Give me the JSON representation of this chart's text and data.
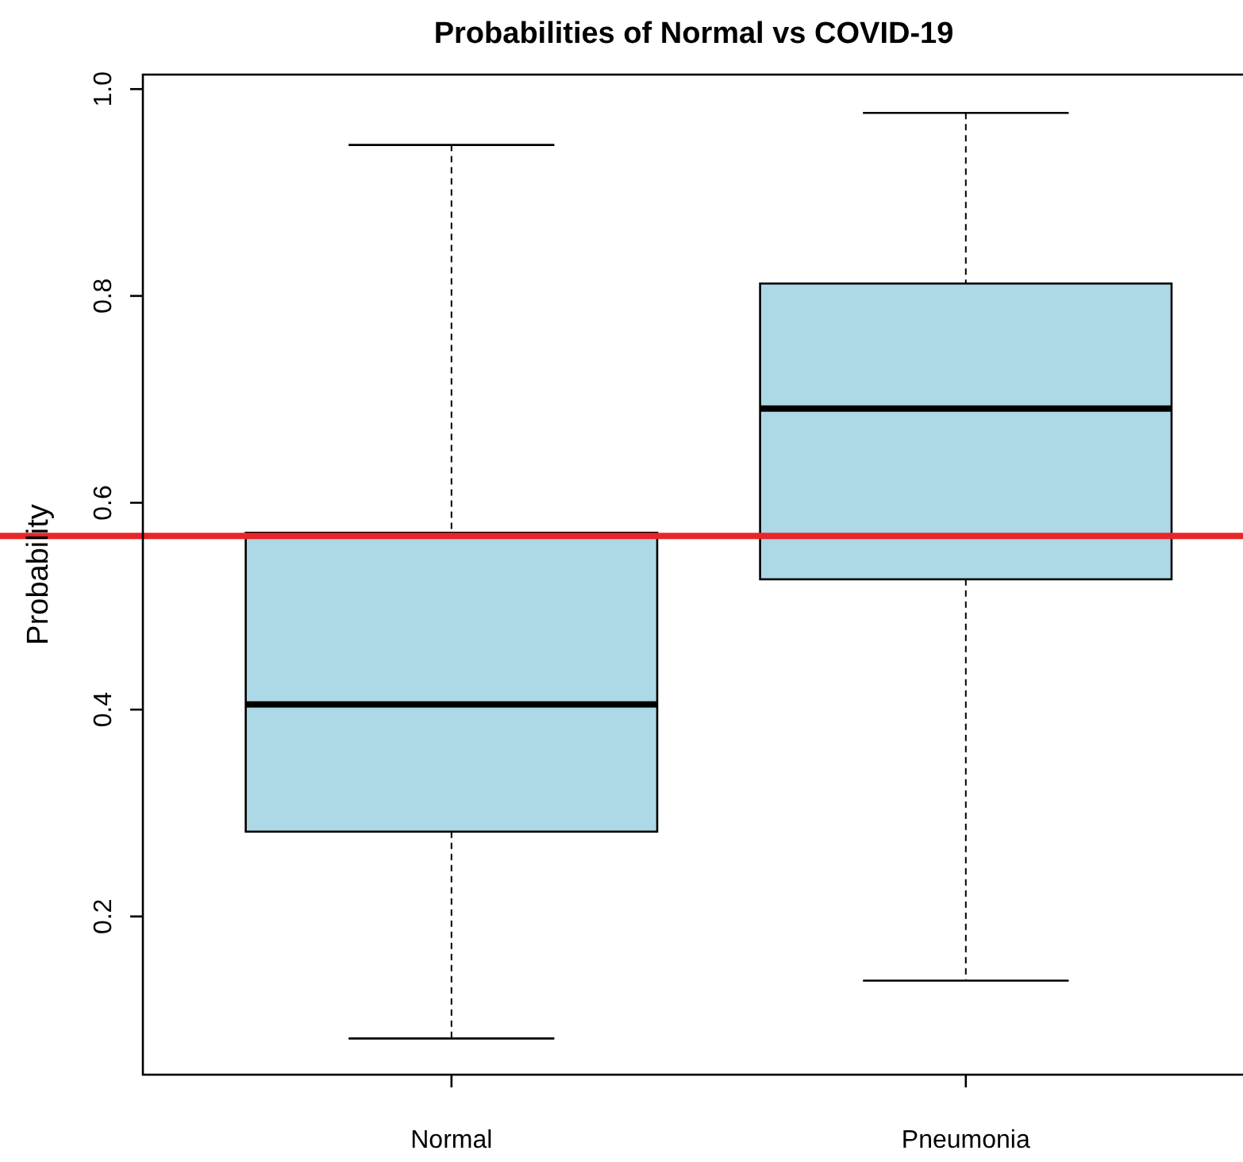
{
  "chart_data": {
    "type": "box",
    "title": "Probabilities of Normal vs COVID-19",
    "ylabel": "Probability",
    "categories": [
      "Normal",
      "Pneumonia"
    ],
    "color": "#add8e6",
    "boxes": [
      {
        "low": 0.082,
        "q1": 0.282,
        "median": 0.405,
        "q3": 0.571,
        "high": 0.946
      },
      {
        "low": 0.138,
        "q1": 0.526,
        "median": 0.691,
        "q3": 0.812,
        "high": 0.977
      }
    ],
    "ylim": [
      0.047,
      1.014
    ],
    "yticks": [
      0.2,
      0.4,
      0.6,
      0.8,
      {
        "value": 1,
        "label": "1.0"
      }
    ],
    "grid": false,
    "ref_lines": [
      {
        "axis": "y",
        "value": 0.568,
        "color": "#e8262a"
      }
    ]
  }
}
